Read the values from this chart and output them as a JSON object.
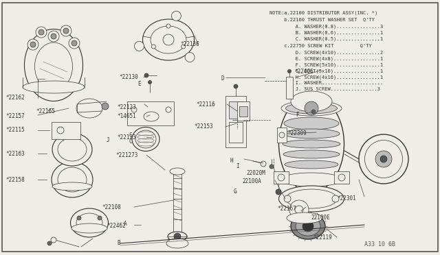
{
  "background_color": "#f0ede8",
  "border_color": "#555555",
  "text_color": "#333333",
  "dark_color": "#444444",
  "fig_width": 6.4,
  "fig_height": 3.72,
  "dpi": 100,
  "note_lines": [
    "NOTE:a.22100 DISTRIBUTOR ASSY(INC. *)",
    "      b.22160 THRUST WASHER SET  Q'TY",
    "        A. WASHER(0.8)...............3",
    "        B. WASHER(0.6)...............1",
    "        C. WASHER(0.5)...............1",
    "      c.22750 SCREW KIT         Q'TY",
    "        D. SCREW(4x10)...............2",
    "        E. SCREW(4x8)................1",
    "        F. SCREW(5x10)...............1",
    "        G. BOLT(5x16)................1",
    "        H. SCREW(4x16)...............1",
    "        I. WASHER....................",
    "        J. SUS SCREW................3"
  ],
  "footer_text": "A33 10 6B"
}
